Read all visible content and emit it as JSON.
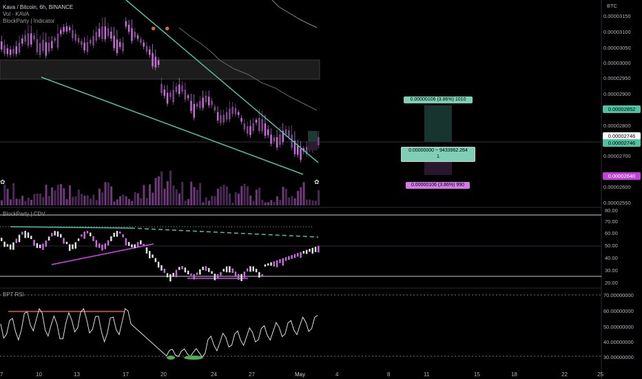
{
  "header": {
    "symbol_line": "Kava / Bitcoin, 6h, BINANCE",
    "vol_line": "Vol · KAVA",
    "indicator_line": "BlockParty | Indicator"
  },
  "colors": {
    "bull": "#c66bd8",
    "bear": "#7e4a8c",
    "trend": "#4fc3a1",
    "pink": "#e040fb",
    "red": "#ef5350",
    "bg": "#000000"
  },
  "price_axis": {
    "currency": "BTC",
    "ticks": [
      "0.00003150",
      "0.00003100",
      "0.00003050",
      "0.00003000",
      "0.00002950",
      "0.00002900",
      "0.00002800",
      "0.00002700",
      "0.00002600",
      "0.00002550"
    ],
    "tags": {
      "target": "0.00002852",
      "current_a": "0.00002746",
      "current_b": "0.00002746",
      "stop": "0.00002640"
    }
  },
  "position_tool": {
    "target_label": "0.00000106 (3.86%) 1010",
    "entry_label": "0.00000000 ~ 9433962.264",
    "entry_sub": "1",
    "stop_label": "0.00000106 (3.86%) 990"
  },
  "cdv_panel": {
    "title": "BlockParty | CDV",
    "ticks": [
      "80.00",
      "70.00",
      "60.00",
      "50.00",
      "40.00",
      "30.00",
      "20.00"
    ]
  },
  "rsi_panel": {
    "title": "BPT RSI",
    "ticks": [
      "70.00000000",
      "60.00000000",
      "50.00000000",
      "40.00000000",
      "30.00000000"
    ]
  },
  "time_axis": {
    "labels": [
      "7",
      "10",
      "13",
      "17",
      "20",
      "24",
      "27",
      "May",
      "4",
      "8",
      "11",
      "15",
      "18",
      "22",
      "25"
    ]
  }
}
